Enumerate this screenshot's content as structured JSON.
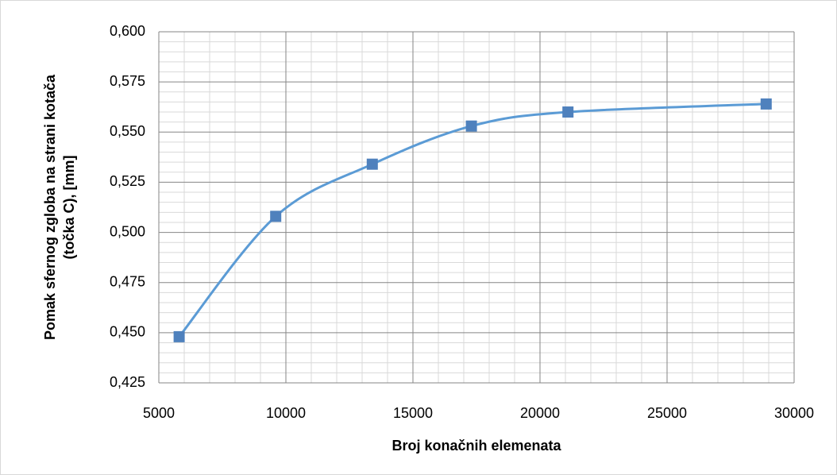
{
  "chart_data": {
    "type": "line",
    "smooth": true,
    "grid": true,
    "xlabel": "Broj konačnih elemenata",
    "ylabel": [
      "Pomak sfernog zgloba na strani kotača",
      "(točka C), [mm]"
    ],
    "x": [
      5800,
      9600,
      13400,
      17300,
      21100,
      28900
    ],
    "series": [
      {
        "color": "#5b9bd5",
        "marker_color": "#4f81bd",
        "values": [
          0.448,
          0.508,
          0.534,
          0.553,
          0.56,
          0.564
        ]
      }
    ],
    "xlim": [
      5000,
      30000
    ],
    "xticks": [
      5000,
      10000,
      15000,
      20000,
      25000,
      30000
    ],
    "ylim": [
      0.425,
      0.6
    ],
    "yticks": [
      {
        "value": 0.425,
        "label": "0,425"
      },
      {
        "value": 0.45,
        "label": "0,450"
      },
      {
        "value": 0.475,
        "label": "0,475"
      },
      {
        "value": 0.5,
        "label": "0,500"
      },
      {
        "value": 0.525,
        "label": "0,525"
      },
      {
        "value": 0.55,
        "label": "0,550"
      },
      {
        "value": 0.575,
        "label": "0,575"
      },
      {
        "value": 0.6,
        "label": "0,600"
      }
    ]
  }
}
